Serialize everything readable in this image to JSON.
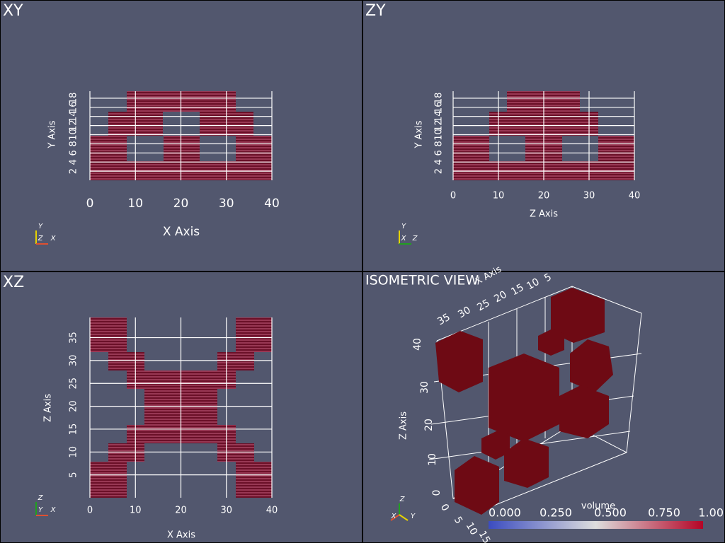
{
  "panels": [
    {
      "title": "XY",
      "x_label": "X Axis",
      "y_label": "Y Axis",
      "x_ticks": [
        0,
        10,
        20,
        30,
        40
      ],
      "y_ticks": [
        2,
        4,
        6,
        8,
        10,
        12,
        14,
        16,
        18
      ],
      "orientation": [
        "Y",
        "Z",
        "X"
      ]
    },
    {
      "title": "ZY",
      "x_label": "Z Axis",
      "y_label": "Y Axis",
      "x_ticks": [
        0,
        10,
        20,
        30,
        40
      ],
      "y_ticks": [
        2,
        4,
        6,
        8,
        10,
        12,
        14,
        16,
        18
      ],
      "orientation": [
        "Y",
        "X",
        "Z"
      ]
    },
    {
      "title": "XZ",
      "x_label": "X Axis",
      "y_label": "Z Axis",
      "x_ticks": [
        0,
        10,
        20,
        30,
        40
      ],
      "y_ticks": [
        5,
        10,
        15,
        20,
        25,
        30,
        35
      ],
      "orientation": [
        "Z",
        "Y",
        "X"
      ]
    },
    {
      "title": "ISOMETRIC VIEW",
      "x_label": "X Axis",
      "z_label": "Z Axis",
      "x_ticks": [
        5,
        10,
        15,
        20,
        25,
        30,
        35
      ],
      "y_ticks": [
        0,
        5,
        10,
        15
      ],
      "z_ticks": [
        0,
        10,
        20,
        30,
        40
      ],
      "orientation": [
        "Z",
        "X",
        "Y"
      ]
    }
  ],
  "colorbar": {
    "title": "volume",
    "ticks": [
      "0.000",
      "0.250",
      "0.500",
      "0.750",
      "1.00"
    ]
  }
}
